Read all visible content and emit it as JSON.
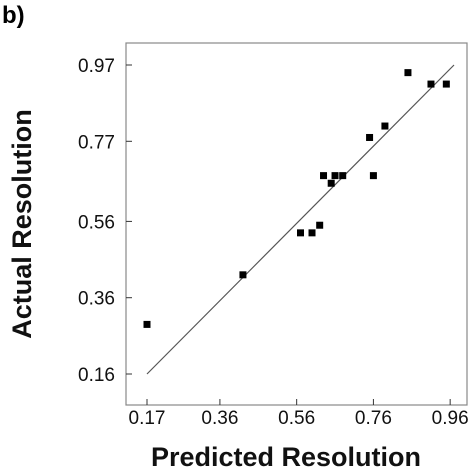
{
  "panel_label": "b)",
  "chart_data": {
    "type": "scatter",
    "title": "",
    "xlabel": "Predicted Resolution",
    "ylabel": "Actual Resolution",
    "xlim": [
      0.17,
      0.97
    ],
    "ylim": [
      0.16,
      0.97
    ],
    "xticks": [
      0.17,
      0.36,
      0.56,
      0.76,
      0.96
    ],
    "xtick_labels": [
      "0.17",
      "0.36",
      "0.56",
      "0.76",
      "0.96"
    ],
    "yticks": [
      0.16,
      0.36,
      0.56,
      0.77,
      0.97
    ],
    "ytick_labels": [
      "0.16",
      "0.36",
      "0.56",
      "0.77",
      "0.97"
    ],
    "grid": false,
    "series": [
      {
        "points": [
          {
            "x": 0.17,
            "y": 0.29
          },
          {
            "x": 0.42,
            "y": 0.42
          },
          {
            "x": 0.57,
            "y": 0.53
          },
          {
            "x": 0.6,
            "y": 0.53
          },
          {
            "x": 0.62,
            "y": 0.55
          },
          {
            "x": 0.63,
            "y": 0.68
          },
          {
            "x": 0.65,
            "y": 0.66
          },
          {
            "x": 0.66,
            "y": 0.68
          },
          {
            "x": 0.68,
            "y": 0.68
          },
          {
            "x": 0.75,
            "y": 0.78
          },
          {
            "x": 0.76,
            "y": 0.68
          },
          {
            "x": 0.79,
            "y": 0.81
          },
          {
            "x": 0.85,
            "y": 0.95
          },
          {
            "x": 0.91,
            "y": 0.92
          },
          {
            "x": 0.95,
            "y": 0.92
          }
        ]
      }
    ],
    "fit_line": {
      "x1": 0.17,
      "y1": 0.16,
      "x2": 0.97,
      "y2": 0.97
    },
    "colors": {
      "marker": "#000000",
      "line": "#555555",
      "frame": "#888888"
    }
  }
}
